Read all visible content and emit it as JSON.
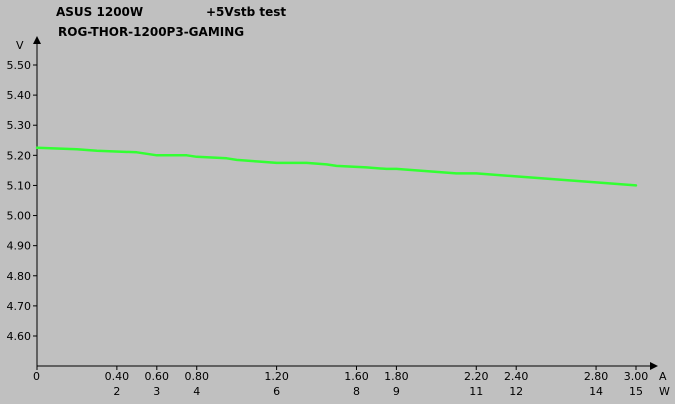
{
  "header": {
    "brand": "ASUS 1200W",
    "test": "+5Vstb test",
    "model": "ROG-THOR-1200P3-GAMING"
  },
  "chart_data": {
    "type": "line",
    "title": "+5Vstb test",
    "y_unit": "V",
    "x_unit": "A",
    "x2_unit": "W",
    "ylim": [
      4.5,
      5.6
    ],
    "xlim": [
      0,
      3.0
    ],
    "y_ticks": [
      "5.50",
      "5.40",
      "5.30",
      "5.20",
      "5.10",
      "5.00",
      "4.90",
      "4.80",
      "4.70",
      "4.60"
    ],
    "x_ticks": [
      "0",
      "0.40",
      "0.60",
      "0.80",
      "1.20",
      "1.60",
      "1.80",
      "2.20",
      "2.40",
      "2.80",
      "3.00"
    ],
    "x_tick_values": [
      0,
      0.4,
      0.6,
      0.8,
      1.2,
      1.6,
      1.8,
      2.2,
      2.4,
      2.8,
      3.0
    ],
    "x2_ticks": [
      "2",
      "3",
      "4",
      "6",
      "8",
      "9",
      "11",
      "12",
      "14",
      "15"
    ],
    "x2_tick_values": [
      0.4,
      0.6,
      0.8,
      1.2,
      1.6,
      1.8,
      2.2,
      2.4,
      2.8,
      3.0
    ],
    "grid": false,
    "line_color": "#33ff33",
    "series": [
      {
        "x": [
          0,
          0.2,
          0.3,
          0.5,
          0.6,
          0.75,
          0.8,
          0.95,
          1.0,
          1.1,
          1.2,
          1.35,
          1.45,
          1.5,
          1.65,
          1.75,
          1.8,
          2.0,
          2.1,
          2.2,
          2.4,
          2.5,
          2.6,
          2.7,
          2.8,
          2.9,
          3.0
        ],
        "values": [
          5.225,
          5.22,
          5.215,
          5.21,
          5.2,
          5.2,
          5.195,
          5.19,
          5.185,
          5.18,
          5.175,
          5.175,
          5.17,
          5.165,
          5.16,
          5.155,
          5.155,
          5.145,
          5.14,
          5.14,
          5.13,
          5.125,
          5.12,
          5.115,
          5.11,
          5.105,
          5.1
        ]
      }
    ]
  }
}
